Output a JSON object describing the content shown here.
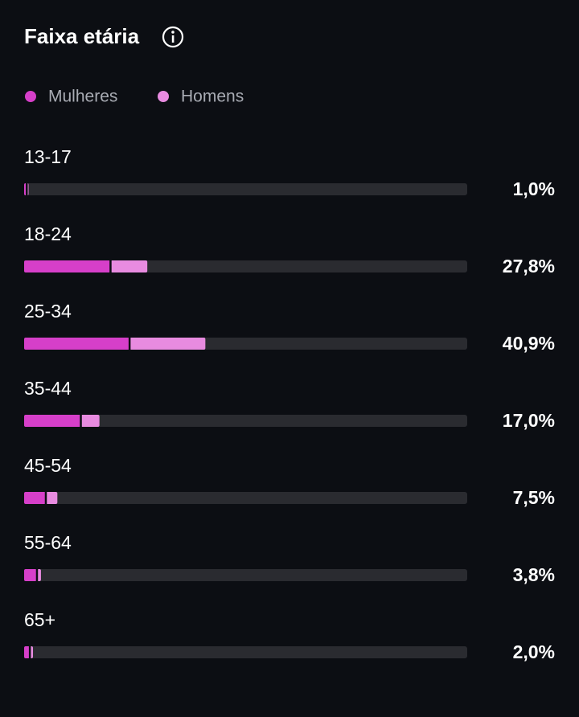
{
  "chart_data": {
    "type": "bar",
    "orientation": "horizontal",
    "stacked": true,
    "title": "Faixa etária",
    "categories": [
      "13-17",
      "18-24",
      "25-34",
      "35-44",
      "45-54",
      "55-64",
      "65+"
    ],
    "series": [
      {
        "name": "Mulheres",
        "color": "#d63fc9",
        "values": [
          0.6,
          19.5,
          23.8,
          12.8,
          4.9,
          2.9,
          1.3
        ]
      },
      {
        "name": "Homens",
        "color": "#e88be0",
        "values": [
          0.4,
          8.3,
          17.1,
          4.2,
          2.6,
          0.9,
          0.7
        ]
      }
    ],
    "totals": [
      1.0,
      27.8,
      40.9,
      17.0,
      7.5,
      3.8,
      2.0
    ],
    "totals_labels": [
      "1,0%",
      "27,8%",
      "40,9%",
      "17,0%",
      "7,5%",
      "3,8%",
      "2,0%"
    ],
    "xlim": [
      0,
      100
    ]
  }
}
